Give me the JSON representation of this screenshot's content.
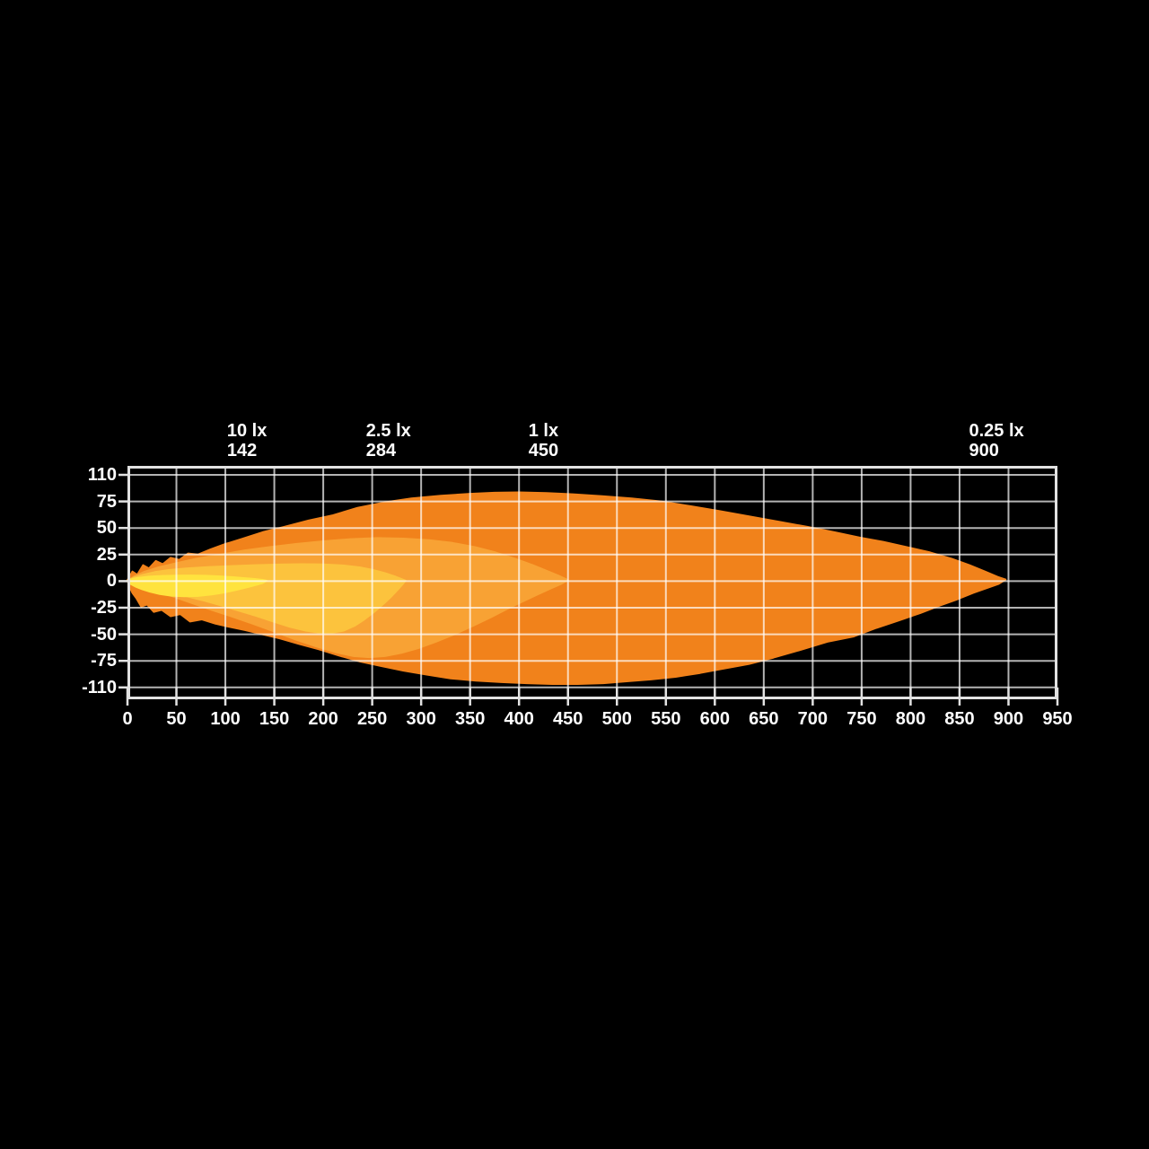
{
  "chart_data": {
    "type": "area",
    "description": "Light beam isolux pattern diagram on black background",
    "background": "#000000",
    "text_color": "#ffffff",
    "grid": true,
    "grid_color_rgba": [
      255,
      255,
      255,
      0.7
    ],
    "border_color": "#e2e2e2",
    "x_axis": {
      "min": 0,
      "max": 950,
      "step": 50,
      "tick_labels": [
        "0",
        "50",
        "100",
        "150",
        "200",
        "250",
        "300",
        "350",
        "400",
        "450",
        "500",
        "550",
        "600",
        "650",
        "700",
        "750",
        "800",
        "850",
        "900",
        "950"
      ]
    },
    "y_axis": {
      "tick_values": [
        110,
        75,
        50,
        25,
        0,
        -25,
        -50,
        -75,
        -110
      ],
      "tick_labels": [
        "110",
        "75",
        "50",
        "25",
        "0",
        "-25",
        "-50",
        "-75",
        "-110"
      ]
    },
    "annotations": [
      {
        "lux_label": "10 lx",
        "distance_label": "142",
        "distance_m": 142
      },
      {
        "lux_label": "2.5 lx",
        "distance_label": "284",
        "distance_m": 284
      },
      {
        "lux_label": "1 lx",
        "distance_label": "450",
        "distance_m": 450
      },
      {
        "lux_label": "0.25 lx",
        "distance_label": "900",
        "distance_m": 900
      }
    ],
    "series": [
      {
        "name": "0.25 lx contour",
        "color": "#F1821B",
        "points": [
          [
            0,
            1
          ],
          [
            5,
            9
          ],
          [
            10,
            6
          ],
          [
            16,
            15
          ],
          [
            22,
            12
          ],
          [
            29,
            19
          ],
          [
            36,
            16
          ],
          [
            44,
            22
          ],
          [
            53,
            20
          ],
          [
            62,
            26
          ],
          [
            72,
            25
          ],
          [
            85,
            30
          ],
          [
            100,
            35
          ],
          [
            118,
            40
          ],
          [
            138,
            46
          ],
          [
            160,
            51
          ],
          [
            185,
            57
          ],
          [
            210,
            62
          ],
          [
            235,
            69
          ],
          [
            262,
            74
          ],
          [
            290,
            79
          ],
          [
            320,
            82.5
          ],
          [
            350,
            85
          ],
          [
            375,
            86.5
          ],
          [
            400,
            87
          ],
          [
            428,
            86
          ],
          [
            455,
            84.5
          ],
          [
            485,
            82
          ],
          [
            515,
            79
          ],
          [
            545,
            75
          ],
          [
            575,
            70.5
          ],
          [
            605,
            66
          ],
          [
            635,
            61
          ],
          [
            665,
            56
          ],
          [
            695,
            51
          ],
          [
            722,
            46
          ],
          [
            748,
            41
          ],
          [
            772,
            37
          ],
          [
            796,
            32
          ],
          [
            820,
            27
          ],
          [
            842,
            21
          ],
          [
            860,
            15
          ],
          [
            876,
            9
          ],
          [
            889,
            4
          ],
          [
            897,
            1.5
          ],
          [
            890,
            -2.5
          ],
          [
            878,
            -6.5
          ],
          [
            864,
            -11
          ],
          [
            848,
            -17
          ],
          [
            830,
            -23
          ],
          [
            810,
            -30
          ],
          [
            788,
            -37
          ],
          [
            765,
            -44
          ],
          [
            742,
            -52
          ],
          [
            715,
            -57
          ],
          [
            690,
            -64
          ],
          [
            660,
            -72
          ],
          [
            635,
            -79
          ],
          [
            610,
            -85
          ],
          [
            585,
            -91
          ],
          [
            560,
            -96
          ],
          [
            535,
            -99.5
          ],
          [
            510,
            -102
          ],
          [
            486,
            -104.5
          ],
          [
            460,
            -105.5
          ],
          [
            434,
            -105.5
          ],
          [
            408,
            -104.5
          ],
          [
            382,
            -103
          ],
          [
            356,
            -101
          ],
          [
            330,
            -98
          ],
          [
            305,
            -93
          ],
          [
            282,
            -88
          ],
          [
            260,
            -82
          ],
          [
            238,
            -76
          ],
          [
            216,
            -70
          ],
          [
            195,
            -64
          ],
          [
            175,
            -59
          ],
          [
            156,
            -54
          ],
          [
            138,
            -50
          ],
          [
            120,
            -46
          ],
          [
            104,
            -43
          ],
          [
            90,
            -40
          ],
          [
            76,
            -36
          ],
          [
            64,
            -38
          ],
          [
            54,
            -31
          ],
          [
            44,
            -33
          ],
          [
            35,
            -27
          ],
          [
            27,
            -29
          ],
          [
            20,
            -22
          ],
          [
            14,
            -24
          ],
          [
            9,
            -16
          ],
          [
            5,
            -11
          ],
          [
            2,
            -5
          ]
        ]
      },
      {
        "name": "1 lx contour",
        "color": "#F8A234",
        "points": [
          [
            0,
            0.5
          ],
          [
            8,
            5
          ],
          [
            18,
            9
          ],
          [
            32,
            13
          ],
          [
            50,
            17
          ],
          [
            70,
            21
          ],
          [
            95,
            25
          ],
          [
            120,
            29
          ],
          [
            145,
            32
          ],
          [
            172,
            35
          ],
          [
            200,
            37.5
          ],
          [
            228,
            39.5
          ],
          [
            255,
            40.5
          ],
          [
            282,
            40
          ],
          [
            308,
            38.5
          ],
          [
            332,
            36
          ],
          [
            355,
            32
          ],
          [
            376,
            27
          ],
          [
            396,
            21
          ],
          [
            414,
            15
          ],
          [
            430,
            9
          ],
          [
            442,
            4.5
          ],
          [
            450,
            1
          ],
          [
            443,
            -2.5
          ],
          [
            432,
            -7
          ],
          [
            419,
            -12.5
          ],
          [
            404,
            -19
          ],
          [
            388,
            -26
          ],
          [
            371,
            -34
          ],
          [
            353,
            -42
          ],
          [
            334,
            -50
          ],
          [
            315,
            -57
          ],
          [
            297,
            -63
          ],
          [
            280,
            -67.5
          ],
          [
            263,
            -70.5
          ],
          [
            247,
            -71.5
          ],
          [
            231,
            -70.5
          ],
          [
            213,
            -67
          ],
          [
            193,
            -61.5
          ],
          [
            172,
            -55
          ],
          [
            150,
            -47.5
          ],
          [
            128,
            -40
          ],
          [
            106,
            -33
          ],
          [
            86,
            -27
          ],
          [
            67,
            -21
          ],
          [
            50,
            -15.5
          ],
          [
            34,
            -10.5
          ],
          [
            20,
            -6.5
          ],
          [
            10,
            -3.5
          ],
          [
            4,
            -1.5
          ]
        ]
      },
      {
        "name": "2.5 lx contour",
        "color": "#FCC33D",
        "points": [
          [
            0,
            0.5
          ],
          [
            7,
            3.5
          ],
          [
            16,
            6
          ],
          [
            28,
            8.5
          ],
          [
            42,
            10.5
          ],
          [
            60,
            12
          ],
          [
            82,
            13.2
          ],
          [
            106,
            14.2
          ],
          [
            130,
            15
          ],
          [
            155,
            15.6
          ],
          [
            178,
            16
          ],
          [
            200,
            15.8
          ],
          [
            220,
            14.8
          ],
          [
            237,
            13
          ],
          [
            251,
            10.5
          ],
          [
            263,
            7.5
          ],
          [
            273,
            4.5
          ],
          [
            280,
            2
          ],
          [
            284,
            0.5
          ],
          [
            281,
            -3
          ],
          [
            276,
            -8
          ],
          [
            270,
            -14
          ],
          [
            262,
            -21
          ],
          [
            252,
            -29
          ],
          [
            242,
            -36
          ],
          [
            232,
            -42
          ],
          [
            221,
            -46.5
          ],
          [
            209,
            -48.5
          ],
          [
            196,
            -48.5
          ],
          [
            182,
            -46.5
          ],
          [
            166,
            -43
          ],
          [
            149,
            -38
          ],
          [
            131,
            -32.5
          ],
          [
            113,
            -27.5
          ],
          [
            96,
            -23
          ],
          [
            79,
            -18.5
          ],
          [
            62,
            -14.5
          ],
          [
            46,
            -11
          ],
          [
            31,
            -8
          ],
          [
            19,
            -5.5
          ],
          [
            10,
            -3.5
          ],
          [
            4,
            -1.5
          ]
        ]
      },
      {
        "name": "10 lx contour",
        "color": "#FFE33E",
        "points": [
          [
            0,
            0.3
          ],
          [
            5,
            2
          ],
          [
            12,
            3.2
          ],
          [
            22,
            4.2
          ],
          [
            35,
            4.9
          ],
          [
            50,
            5.2
          ],
          [
            65,
            5.3
          ],
          [
            80,
            5.1
          ],
          [
            95,
            4.5
          ],
          [
            108,
            3.7
          ],
          [
            120,
            2.8
          ],
          [
            130,
            2
          ],
          [
            138,
            1.2
          ],
          [
            142,
            0.4
          ],
          [
            138,
            -1.8
          ],
          [
            131,
            -3.6
          ],
          [
            122,
            -5.8
          ],
          [
            111,
            -8.2
          ],
          [
            99,
            -10.6
          ],
          [
            86,
            -12.6
          ],
          [
            72,
            -13.9
          ],
          [
            58,
            -14.3
          ],
          [
            45,
            -13.7
          ],
          [
            33,
            -12.2
          ],
          [
            23,
            -10
          ],
          [
            15,
            -7.6
          ],
          [
            9,
            -5.4
          ],
          [
            4,
            -3
          ],
          [
            1,
            -1.2
          ]
        ]
      }
    ]
  }
}
